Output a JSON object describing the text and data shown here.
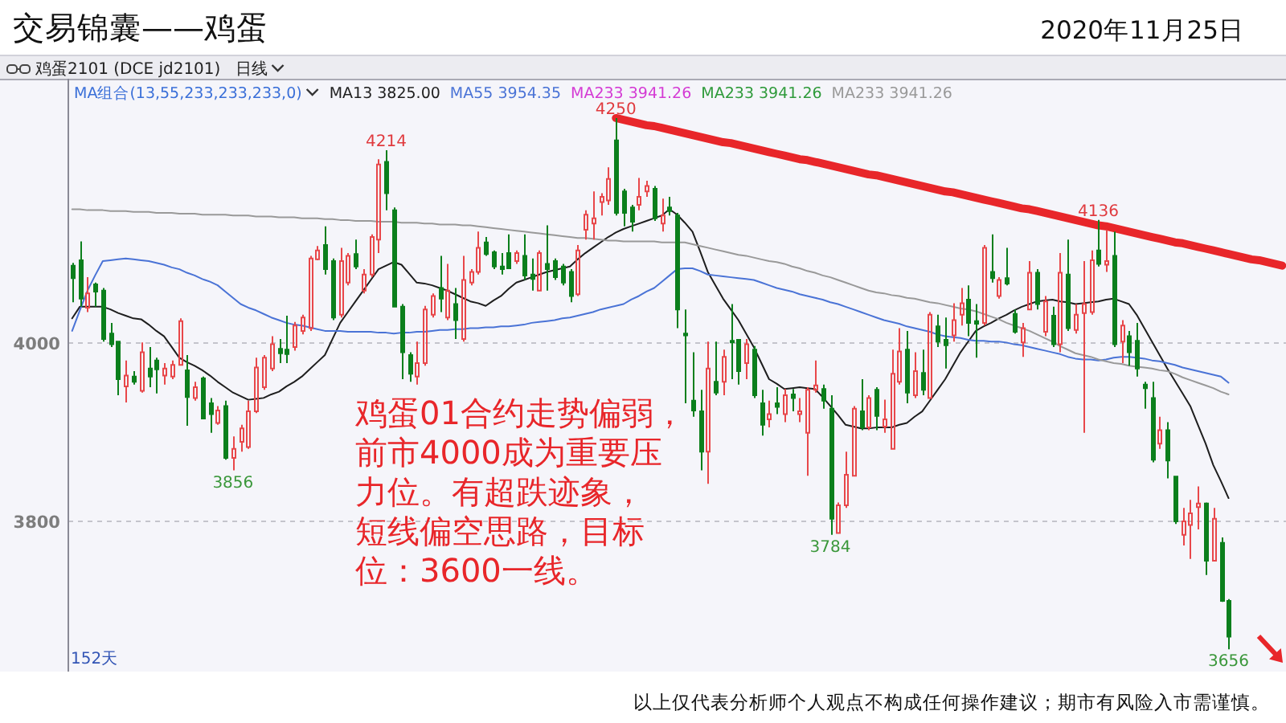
{
  "chart_data": {
    "type": "candlestick",
    "title": "交易锦囊——鸡蛋",
    "subtitle": "2020年11月25日",
    "annotations": [
      "鸡蛋2101 (DCE jd2101)",
      "日线",
      "MA组合(13,55,233,233,233,0)",
      "152天",
      "鸡蛋01合约走势偏弱，前市4000成为重要压力位。有超跌迹象，短线偏空思路，目标位：3600一线。",
      "以上仅代表分析师个人观点不构成任何操作建议；期市有风险入市需谨慎。"
    ],
    "categories": [
      null,
      null,
      null,
      null,
      null,
      null,
      null,
      null,
      null,
      null,
      null,
      null,
      null,
      null,
      null,
      null,
      null,
      null,
      null,
      null,
      null,
      null,
      null,
      null,
      null,
      null,
      null,
      null,
      null,
      null,
      null,
      null,
      null,
      null,
      null,
      null,
      null,
      null,
      null,
      null,
      null,
      null,
      null,
      null,
      null,
      null,
      null,
      null,
      null,
      null,
      null,
      null,
      null,
      null,
      null,
      null,
      null,
      null,
      null,
      null,
      null,
      null,
      null,
      null,
      null,
      null,
      null,
      null,
      null,
      null,
      null,
      null,
      null,
      null,
      null,
      null,
      null,
      null,
      null,
      null,
      null,
      null,
      null,
      null,
      null,
      null,
      null,
      null,
      null,
      null,
      null,
      null,
      null,
      null,
      null,
      null,
      null,
      null,
      null,
      null,
      null,
      null,
      null,
      null,
      null,
      null,
      null,
      null,
      null,
      null,
      null,
      null,
      null,
      null,
      null,
      null,
      null,
      null,
      null,
      null,
      null,
      null,
      null,
      null,
      null,
      null,
      null,
      null,
      null,
      null,
      null,
      null,
      null,
      null,
      null,
      null,
      null,
      null,
      null,
      null,
      null,
      null,
      null,
      null,
      null,
      null,
      null,
      null,
      null,
      null,
      null,
      null,
      null,
      null,
      null,
      null,
      null,
      null,
      null
    ],
    "ohlc": [
      [
        4085,
        4088,
        4044,
        4071
      ],
      [
        4091,
        4112,
        4039,
        4048
      ],
      [
        4038,
        4072,
        4033,
        4054
      ],
      [
        4064,
        4066,
        4039,
        4056
      ],
      [
        4057,
        4060,
        4000,
        4003
      ],
      [
        4009,
        4021,
        3994,
        3997
      ],
      [
        4000,
        4000,
        3940,
        3958
      ],
      [
        3950,
        3979,
        3932,
        3962
      ],
      [
        3961,
        3967,
        3952,
        3955
      ],
      [
        3945,
        3999,
        3943,
        3988
      ],
      [
        3970,
        3994,
        3949,
        3961
      ],
      [
        3979,
        3982,
        3942,
        3969
      ],
      [
        3962,
        3976,
        3952,
        3970
      ],
      [
        3961,
        3979,
        3958,
        3974
      ],
      [
        3974,
        4026,
        3973,
        4023
      ],
      [
        3968,
        3985,
        3906,
        3938
      ],
      [
        3937,
        3955,
        3934,
        3949
      ],
      [
        3959,
        3961,
        3913,
        3914
      ],
      [
        3931,
        3937,
        3898,
        3919
      ],
      [
        3909,
        3928,
        3907,
        3923
      ],
      [
        3928,
        3934,
        3868,
        3870
      ],
      [
        3870,
        3894,
        3856,
        3880
      ],
      [
        3888,
        3907,
        3877,
        3903
      ],
      [
        3882,
        3934,
        3880,
        3922
      ],
      [
        3922,
        3982,
        3920,
        3971
      ],
      [
        3949,
        3985,
        3946,
        3982
      ],
      [
        3970,
        4006,
        3967,
        3997
      ],
      [
        3992,
        4003,
        3976,
        3987
      ],
      [
        3991,
        4029,
        3976,
        3986
      ],
      [
        3994,
        4022,
        3990,
        4018
      ],
      [
        4012,
        4030,
        4008,
        4027
      ],
      [
        4015,
        4096,
        4012,
        4093
      ],
      [
        4092,
        4107,
        4091,
        4102
      ],
      [
        4108,
        4129,
        4075,
        4081
      ],
      [
        4090,
        4093,
        4024,
        4027
      ],
      [
        4030,
        4105,
        4027,
        4090
      ],
      [
        4066,
        4099,
        4063,
        4096
      ],
      [
        4098,
        4114,
        4081,
        4084
      ],
      [
        4057,
        4081,
        4054,
        4075
      ],
      [
        4075,
        4120,
        4072,
        4117
      ],
      [
        4114,
        4204,
        4099,
        4198
      ],
      [
        4201,
        4214,
        4147,
        4166
      ],
      [
        4147,
        4150,
        4039,
        4039
      ],
      [
        4039,
        4042,
        3958,
        3988
      ],
      [
        3985,
        3988,
        3955,
        3964
      ],
      [
        3961,
        4000,
        3952,
        3976
      ],
      [
        3976,
        4040,
        3973,
        4036
      ],
      [
        4030,
        4054,
        4027,
        4051
      ],
      [
        4060,
        4096,
        4033,
        4048
      ],
      [
        4027,
        4087,
        4024,
        4057
      ],
      [
        4042,
        4060,
        4003,
        4024
      ],
      [
        4003,
        4096,
        4000,
        4069
      ],
      [
        4066,
        4081,
        4063,
        4078
      ],
      [
        4078,
        4123,
        4075,
        4105
      ],
      [
        4111,
        4117,
        4096,
        4098
      ],
      [
        4100,
        4102,
        4081,
        4084
      ],
      [
        4084,
        4099,
        4075,
        4081
      ],
      [
        4099,
        4120,
        4081,
        4082
      ],
      [
        4090,
        4102,
        4087,
        4099
      ],
      [
        4096,
        4120,
        4069,
        4074
      ],
      [
        4075,
        4093,
        4057,
        4070
      ],
      [
        4057,
        4102,
        4057,
        4099
      ],
      [
        4087,
        4130,
        4057,
        4081
      ],
      [
        4090,
        4093,
        4069,
        4072
      ],
      [
        4084,
        4087,
        4063,
        4066
      ],
      [
        4078,
        4081,
        4044,
        4051
      ],
      [
        4053,
        4108,
        4051,
        4102
      ],
      [
        4125,
        4147,
        4114,
        4142
      ],
      [
        4132,
        4168,
        4114,
        4138
      ],
      [
        4156,
        4166,
        4141,
        4162
      ],
      [
        4158,
        4195,
        4153,
        4182
      ],
      [
        4225,
        4250,
        4141,
        4144
      ],
      [
        4168,
        4171,
        4129,
        4144
      ],
      [
        4150,
        4153,
        4123,
        4134
      ],
      [
        4153,
        4183,
        4147,
        4162
      ],
      [
        4168,
        4180,
        4162,
        4174
      ],
      [
        4171,
        4174,
        4135,
        4138
      ],
      [
        4132,
        4160,
        4123,
        4141
      ],
      [
        4150,
        4162,
        4141,
        4146
      ],
      [
        4141,
        4144,
        4015,
        4036
      ],
      [
        4009,
        4036,
        3931,
        4007
      ],
      [
        3934,
        3988,
        3916,
        3923
      ],
      [
        3922,
        3946,
        3856,
        3877
      ],
      [
        3877,
        4000,
        3841,
        3970
      ],
      [
        3955,
        4000,
        3940,
        3943
      ],
      [
        3955,
        3991,
        3940,
        3983
      ],
      [
        4001,
        4042,
        3958,
        3999
      ],
      [
        4002,
        4003,
        3952,
        3967
      ],
      [
        3976,
        4003,
        3958,
        3997
      ],
      [
        3991,
        3995,
        3937,
        3940
      ],
      [
        3931,
        3946,
        3895,
        3907
      ],
      [
        3913,
        3934,
        3904,
        3919
      ],
      [
        3931,
        3949,
        3919,
        3927
      ],
      [
        3919,
        3947,
        3910,
        3940
      ],
      [
        3941,
        3947,
        3922,
        3937
      ],
      [
        3919,
        3937,
        3910,
        3922
      ],
      [
        3898,
        3949,
        3850,
        3946
      ],
      [
        3946,
        3979,
        3943,
        3951
      ],
      [
        3947,
        3952,
        3925,
        3934
      ],
      [
        3925,
        3940,
        3784,
        3802
      ],
      [
        3786,
        3820,
        3786,
        3817
      ],
      [
        3817,
        3877,
        3814,
        3851
      ],
      [
        3850,
        3928,
        3850,
        3925
      ],
      [
        3922,
        3958,
        3901,
        3904
      ],
      [
        3904,
        3940,
        3901,
        3937
      ],
      [
        3946,
        3949,
        3901,
        3917
      ],
      [
        3905,
        3935,
        3898,
        3913
      ],
      [
        3880,
        3991,
        3880,
        3964
      ],
      [
        3955,
        4015,
        3952,
        3989
      ],
      [
        3991,
        4012,
        3931,
        3943
      ],
      [
        3940,
        3988,
        3937,
        3967
      ],
      [
        3965,
        3991,
        3940,
        3946
      ],
      [
        3937,
        4033,
        3936,
        4030
      ],
      [
        4017,
        4030,
        3994,
        4000
      ],
      [
        4002,
        4027,
        3970,
        3996
      ],
      [
        4007,
        4043,
        4000,
        4024
      ],
      [
        4030,
        4060,
        4018,
        4043
      ],
      [
        4047,
        4063,
        4006,
        4021
      ],
      [
        4023,
        4042,
        3982,
        4020
      ],
      [
        4021,
        4108,
        4018,
        4105
      ],
      [
        4078,
        4120,
        4066,
        4071
      ],
      [
        4051,
        4072,
        4048,
        4069
      ],
      [
        4071,
        4105,
        4063,
        4065
      ],
      [
        4031,
        4036,
        4009,
        4011
      ],
      [
        3999,
        4021,
        3983,
        4015
      ],
      [
        4036,
        4090,
        4035,
        4077
      ],
      [
        4077,
        4081,
        4036,
        4042
      ],
      [
        4011,
        4051,
        4006,
        4045
      ],
      [
        4029,
        4039,
        3994,
        3997
      ],
      [
        3997,
        4099,
        3988,
        4077
      ],
      [
        4075,
        4114,
        4012,
        4015
      ],
      [
        4013,
        4042,
        4009,
        4030
      ],
      [
        4032,
        4090,
        3898,
        4042
      ],
      [
        4033,
        4102,
        4030,
        4091
      ],
      [
        4102,
        4136,
        4084,
        4087
      ],
      [
        4086,
        4125,
        4078,
        4090
      ],
      [
        4096,
        4123,
        3994,
        3997
      ],
      [
        4000,
        4024,
        3976,
        4018
      ],
      [
        4006,
        4012,
        3973,
        3988
      ],
      [
        4001,
        4021,
        3961,
        3970
      ],
      [
        3952,
        3955,
        3925,
        3948
      ],
      [
        3937,
        3955,
        3865,
        3868
      ],
      [
        3886,
        3916,
        3880,
        3901
      ],
      [
        3901,
        3910,
        3847,
        3867
      ],
      [
        3849,
        3850,
        3796,
        3799
      ],
      [
        3784,
        3814,
        3772,
        3799
      ],
      [
        3795,
        3823,
        3757,
        3808
      ],
      [
        3815,
        3838,
        3790,
        3819
      ],
      [
        3819,
        3820,
        3739,
        3755
      ],
      [
        3755,
        3814,
        3754,
        3802
      ],
      [
        3775,
        3781,
        3709,
        3710
      ],
      [
        3710,
        3712,
        3656,
        3670
      ],
      null,
      null,
      null,
      null,
      null,
      null,
      null
    ],
    "colors": [
      "#0b7f1c",
      "#0b7f1c",
      "#e8474a",
      "#0b7f1c",
      "#0b7f1c",
      "#0b7f1c",
      "#0b7f1c",
      "#e8474a",
      "#0b7f1c",
      "#e8474a",
      "#0b7f1c",
      "#0b7f1c",
      "#e8474a",
      "#e8474a",
      "#e8474a",
      "#0b7f1c",
      "#e8474a",
      "#0b7f1c",
      "#0b7f1c",
      "#e8474a",
      "#0b7f1c",
      "#e8474a",
      "#e8474a",
      "#e8474a",
      "#e8474a",
      "#e8474a",
      "#e8474a",
      "#0b7f1c",
      "#0b7f1c",
      "#e8474a",
      "#e8474a",
      "#e8474a",
      "#e8474a",
      "#0b7f1c",
      "#0b7f1c",
      "#e8474a",
      "#e8474a",
      "#0b7f1c",
      "#e8474a",
      "#e8474a",
      "#e8474a",
      "#0b7f1c",
      "#0b7f1c",
      "#0b7f1c",
      "#0b7f1c",
      "#e8474a",
      "#e8474a",
      "#e8474a",
      "#0b7f1c",
      "#e8474a",
      "#0b7f1c",
      "#e8474a",
      "#e8474a",
      "#e8474a",
      "#0b7f1c",
      "#0b7f1c",
      "#0b7f1c",
      "#0b7f1c",
      "#e8474a",
      "#0b7f1c",
      "#0b7f1c",
      "#e8474a",
      "#0b7f1c",
      "#0b7f1c",
      "#0b7f1c",
      "#0b7f1c",
      "#e8474a",
      "#e8474a",
      "#e8474a",
      "#e8474a",
      "#e8474a",
      "#0b7f1c",
      "#0b7f1c",
      "#0b7f1c",
      "#e8474a",
      "#e8474a",
      "#0b7f1c",
      "#e8474a",
      "#0b7f1c",
      "#0b7f1c",
      "#0b7f1c",
      "#0b7f1c",
      "#0b7f1c",
      "#e8474a",
      "#0b7f1c",
      "#e8474a",
      "#0b7f1c",
      "#0b7f1c",
      "#e8474a",
      "#0b7f1c",
      "#0b7f1c",
      "#e8474a",
      "#0b7f1c",
      "#e8474a",
      "#0b7f1c",
      "#e8474a",
      "#e8474a",
      "#e8474a",
      "#0b7f1c",
      "#0b7f1c",
      "#e8474a",
      "#e8474a",
      "#e8474a",
      "#0b7f1c",
      "#e8474a",
      "#0b7f1c",
      "#e8474a",
      "#e8474a",
      "#e8474a",
      "#0b7f1c",
      "#e8474a",
      "#0b7f1c",
      "#e8474a",
      "#0b7f1c",
      "#0b7f1c",
      "#e8474a",
      "#e8474a",
      "#0b7f1c",
      "#0b7f1c",
      "#e8474a",
      "#0b7f1c",
      "#e8474a",
      "#0b7f1c",
      "#0b7f1c",
      "#e8474a",
      "#e8474a",
      "#0b7f1c",
      "#e8474a",
      "#0b7f1c",
      "#e8474a",
      "#0b7f1c",
      "#e8474a",
      "#e8474a",
      "#e8474a",
      "#0b7f1c",
      "#e8474a",
      "#0b7f1c",
      "#e8474a",
      "#0b7f1c",
      "#0b7f1c",
      "#0b7f1c",
      "#0b7f1c",
      "#e8474a",
      "#0b7f1c",
      "#0b7f1c",
      "#e8474a",
      "#e8474a",
      "#e8474a",
      "#0b7f1c",
      "#e8474a",
      "#0b7f1c",
      "#0b7f1c",
      null,
      null,
      null,
      null,
      null,
      null,
      null
    ],
    "value_labels": [
      null,
      null,
      null,
      null,
      null,
      null,
      null,
      null,
      null,
      null,
      null,
      null,
      null,
      null,
      null,
      null,
      null,
      null,
      null,
      null,
      null,
      "3856",
      null,
      null,
      null,
      null,
      null,
      null,
      null,
      null,
      null,
      null,
      null,
      null,
      null,
      null,
      null,
      null,
      null,
      null,
      null,
      "4214",
      null,
      null,
      null,
      null,
      null,
      null,
      null,
      null,
      null,
      null,
      null,
      null,
      null,
      null,
      null,
      null,
      null,
      null,
      null,
      null,
      null,
      null,
      null,
      null,
      null,
      null,
      null,
      null,
      null,
      "4250",
      null,
      null,
      null,
      null,
      null,
      null,
      null,
      null,
      null,
      null,
      null,
      null,
      null,
      null,
      null,
      null,
      null,
      null,
      null,
      null,
      null,
      null,
      null,
      null,
      null,
      null,
      null,
      "3784",
      null,
      null,
      null,
      null,
      null,
      null,
      null,
      null,
      null,
      null,
      null,
      null,
      null,
      null,
      null,
      null,
      null,
      null,
      null,
      null,
      null,
      null,
      null,
      null,
      null,
      null,
      null,
      null,
      null,
      null,
      null,
      null,
      null,
      null,
      "4136",
      null,
      null,
      null,
      null,
      null,
      null,
      null,
      null,
      null,
      null,
      null,
      null,
      null,
      null,
      null,
      null,
      "3656",
      null,
      null,
      null,
      null,
      null,
      null,
      null
    ],
    "ylim": [
      3631,
      4294
    ],
    "yticks": [
      3800,
      4000
    ],
    "grid": "y",
    "legend": "top left",
    "series": [
      {
        "type": "line",
        "name": "MA13 3825.00",
        "color": "#1e1e1e",
        "values": [
          4026,
          4039,
          4039,
          4039,
          4039,
          4036,
          4032,
          4029,
          4026,
          4025,
          4019,
          4012,
          4006,
          3994,
          3982,
          3977,
          3973,
          3968,
          3962,
          3955,
          3949,
          3943,
          3939,
          3935,
          3936,
          3937,
          3941,
          3944,
          3950,
          3955,
          3961,
          3969,
          3977,
          3985,
          4003,
          4021,
          4033,
          4045,
          4057,
          4069,
          4081,
          4085,
          4089,
          4086,
          4076,
          4066,
          4065,
          4063,
          4060,
          4057,
          4053,
          4049,
          4045,
          4043,
          4040,
          4046,
          4051,
          4059,
          4066,
          4069,
          4072,
          4075,
          4078,
          4080,
          4082,
          4084,
          4092,
          4099,
          4105,
          4111,
          4117,
          4122,
          4126,
          4129,
          4132,
          4135,
          4138,
          4141,
          4148,
          4142,
          4133,
          4123,
          4101,
          4078,
          4063,
          4048,
          4036,
          4024,
          4009,
          3994,
          3976,
          3958,
          3953,
          3947,
          3948,
          3949,
          3948,
          3947,
          3938,
          3928,
          3918,
          3907,
          3905,
          3903,
          3903,
          3904,
          3904,
          3904,
          3907,
          3909,
          3916,
          3922,
          3934,
          3946,
          3958,
          3973,
          3988,
          4000,
          4012,
          4017,
          4021,
          4026,
          4030,
          4035,
          4039,
          4042,
          4045,
          4046,
          4047,
          4045,
          4044,
          4042,
          4043,
          4044,
          4045,
          4047,
          4048,
          4045,
          4042,
          4030,
          4015,
          4000,
          3985,
          3970,
          3956,
          3942,
          3928,
          3907,
          3886,
          3862,
          3844,
          3825,
          null,
          null,
          null,
          null,
          null,
          null,
          null
        ]
      },
      {
        "type": "line",
        "name": "MA55 3954.35",
        "color": "#4a73d6",
        "values": [
          4012,
          4035,
          4057,
          4074,
          4090,
          4091,
          4092,
          4093,
          4092,
          4091,
          4090,
          4088,
          4086,
          4083,
          4081,
          4077,
          4074,
          4070,
          4067,
          4063,
          4056,
          4049,
          4042,
          4038,
          4035,
          4031,
          4027,
          4024,
          4021,
          4019,
          4018,
          4016,
          4014,
          4012,
          4012,
          4012,
          4011,
          4011,
          4011,
          4011,
          4010,
          4010,
          4009,
          4010,
          4010,
          4011,
          4011,
          4012,
          4013,
          4013,
          4014,
          4014,
          4015,
          4015,
          4016,
          4016,
          4017,
          4017,
          4018,
          4019,
          4021,
          4022,
          4023,
          4024,
          4026,
          4027,
          4029,
          4031,
          4033,
          4036,
          4038,
          4040,
          4042,
          4047,
          4051,
          4056,
          4060,
          4067,
          4074,
          4081,
          4082,
          4082,
          4079,
          4075,
          4074,
          4073,
          4072,
          4071,
          4070,
          4069,
          4066,
          4063,
          4060,
          4058,
          4056,
          4053,
          4051,
          4049,
          4047,
          4044,
          4042,
          4039,
          4036,
          4033,
          4030,
          4027,
          4024,
          4022,
          4020,
          4017,
          4015,
          4013,
          4011,
          4008,
          4006,
          4005,
          4004,
          4002,
          4001,
          4001,
          4000,
          4000,
          3999,
          3997,
          3996,
          3994,
          3992,
          3990,
          3988,
          3986,
          3983,
          3981,
          3980,
          3980,
          3979,
          3980,
          3982,
          3983,
          3983,
          3982,
          3981,
          3979,
          3978,
          3976,
          3974,
          3971,
          3969,
          3967,
          3965,
          3963,
          3961,
          3954,
          null,
          null,
          null,
          null,
          null,
          null,
          null
        ]
      },
      {
        "type": "line",
        "name": "MA233 3941.26",
        "color": "#d43ad4",
        "values": [
          null,
          null,
          null,
          null,
          null,
          null,
          null,
          null,
          null,
          null,
          null,
          null,
          null,
          null,
          null,
          null,
          null,
          null,
          null,
          null,
          null,
          null,
          null,
          null,
          null,
          null,
          null,
          null,
          null,
          null,
          null,
          null,
          null,
          null,
          null,
          null,
          null,
          null,
          null,
          null,
          null,
          null,
          null,
          null,
          null,
          null,
          null,
          null,
          null,
          null,
          null,
          null,
          null,
          null,
          null,
          null,
          null,
          null,
          null,
          null,
          null,
          null,
          null,
          null,
          null,
          null,
          null,
          null,
          null,
          null,
          null,
          null,
          null,
          null,
          null,
          null,
          null,
          null,
          null,
          null,
          null,
          null,
          null,
          null,
          null,
          null,
          null,
          null,
          null,
          null,
          null,
          null,
          null,
          null,
          null,
          null,
          null,
          null,
          null,
          null,
          null,
          null,
          null,
          null,
          null,
          null,
          null,
          null,
          null,
          null,
          null,
          null,
          null,
          null,
          null,
          null,
          null,
          null,
          null,
          null,
          null,
          null,
          null,
          null,
          null,
          null,
          null,
          null,
          null,
          null,
          null,
          null,
          null,
          null,
          null,
          null,
          null,
          null,
          null,
          null,
          null,
          null,
          null,
          null,
          null,
          null,
          null,
          null,
          null,
          null,
          null,
          null,
          null,
          null,
          null,
          null,
          null,
          null,
          null
        ]
      },
      {
        "type": "line",
        "name": "MA233 3941.26",
        "color": "#2e9a3a",
        "values": [
          null,
          null,
          null,
          null,
          null,
          null,
          null,
          null,
          null,
          null,
          null,
          null,
          null,
          null,
          null,
          null,
          null,
          null,
          null,
          null,
          null,
          null,
          null,
          null,
          null,
          null,
          null,
          null,
          null,
          null,
          null,
          null,
          null,
          null,
          null,
          null,
          null,
          null,
          null,
          null,
          null,
          null,
          null,
          null,
          null,
          null,
          null,
          null,
          null,
          null,
          null,
          null,
          null,
          null,
          null,
          null,
          null,
          null,
          null,
          null,
          null,
          null,
          null,
          null,
          null,
          null,
          null,
          null,
          null,
          null,
          null,
          null,
          null,
          null,
          null,
          null,
          null,
          null,
          null,
          null,
          null,
          null,
          null,
          null,
          null,
          null,
          null,
          null,
          null,
          null,
          null,
          null,
          null,
          null,
          null,
          null,
          null,
          null,
          null,
          null,
          null,
          null,
          null,
          null,
          null,
          null,
          null,
          null,
          null,
          null,
          null,
          null,
          null,
          null,
          null,
          null,
          null,
          null,
          null,
          null,
          null,
          null,
          null,
          null,
          null,
          null,
          null,
          null,
          null,
          null,
          null,
          null,
          null,
          null,
          null,
          null,
          null,
          null,
          null,
          null,
          null,
          null,
          null,
          null,
          null,
          null,
          null,
          null,
          null,
          null,
          null,
          null,
          null,
          null,
          null,
          null,
          null,
          null,
          null
        ]
      },
      {
        "type": "line",
        "name": "MA233 3941.26",
        "color": "#999999",
        "values": [
          4148,
          4148,
          4147,
          4147,
          4147,
          4146,
          4146,
          4146,
          4145,
          4145,
          4145,
          4144,
          4144,
          4144,
          4143,
          4143,
          4143,
          4142,
          4142,
          4142,
          4142,
          4141,
          4141,
          4141,
          4140,
          4140,
          4140,
          4139,
          4139,
          4139,
          4138,
          4138,
          4138,
          4137,
          4137,
          4136,
          4136,
          4135,
          4135,
          4135,
          4134,
          4134,
          4134,
          4133,
          4133,
          4133,
          4132,
          4132,
          4131,
          4131,
          4131,
          4130,
          4130,
          4129,
          4128,
          4127,
          4126,
          4125,
          4124,
          4123,
          4122,
          4121,
          4120,
          4119,
          4118,
          4117,
          4116,
          4116,
          4115,
          4114,
          4113,
          4113,
          4112,
          4112,
          4112,
          4112,
          4112,
          4111,
          4111,
          4111,
          4111,
          4109,
          4107,
          4105,
          4103,
          4101,
          4099,
          4097,
          4096,
          4094,
          4092,
          4090,
          4089,
          4087,
          4084,
          4082,
          4079,
          4077,
          4074,
          4072,
          4069,
          4066,
          4063,
          4060,
          4057,
          4055,
          4054,
          4052,
          4051,
          4049,
          4048,
          4046,
          4044,
          4043,
          4041,
          4039,
          4037,
          4036,
          4034,
          4031,
          4028,
          4025,
          4021,
          4018,
          4015,
          4012,
          4008,
          4004,
          4000,
          3995,
          3991,
          3987,
          3985,
          3983,
          3980,
          3978,
          3976,
          3975,
          3973,
          3972,
          3971,
          3970,
          3968,
          3967,
          3964,
          3960,
          3957,
          3954,
          3951,
          3948,
          3944,
          3941,
          null,
          null,
          null,
          null,
          null,
          null,
          null
        ]
      },
      {
        "type": "line",
        "color": "#e8262a",
        "values": [
          null,
          null,
          null,
          null,
          null,
          null,
          null,
          null,
          null,
          null,
          null,
          null,
          null,
          null,
          null,
          null,
          null,
          null,
          null,
          null,
          null,
          null,
          null,
          null,
          null,
          null,
          null,
          null,
          null,
          null,
          null,
          null,
          null,
          null,
          null,
          null,
          null,
          null,
          null,
          null,
          null,
          null,
          null,
          null,
          null,
          null,
          null,
          null,
          null,
          null,
          null,
          null,
          null,
          null,
          null,
          null,
          null,
          null,
          null,
          null,
          null,
          null,
          null,
          null,
          null,
          null,
          null,
          null,
          null,
          null,
          null,
          4250,
          4248,
          4246,
          4244,
          4242,
          4241,
          4239,
          4237,
          4235,
          4233,
          4231,
          4229,
          4227,
          4225,
          4223,
          4222,
          4220,
          4218,
          4216,
          4214,
          4212,
          4210,
          4208,
          4206,
          4204,
          4203,
          4201,
          4199,
          4197,
          4195,
          4193,
          4191,
          4189,
          4187,
          4186,
          4184,
          4182,
          4180,
          4178,
          4176,
          4174,
          4172,
          4170,
          4168,
          4167,
          4165,
          4163,
          4161,
          4159,
          4157,
          4155,
          4153,
          4151,
          4149,
          4148,
          4146,
          4144,
          4142,
          4140,
          4138,
          4136,
          4134,
          4132,
          4130,
          4129,
          4127,
          4125,
          4123,
          4121,
          4119,
          4117,
          4115,
          4113,
          4111,
          4110,
          4108,
          4106,
          4104,
          4102,
          4100,
          4098,
          4096,
          4094,
          4092,
          4091,
          4089,
          4087,
          4085
        ]
      }
    ]
  }
}
